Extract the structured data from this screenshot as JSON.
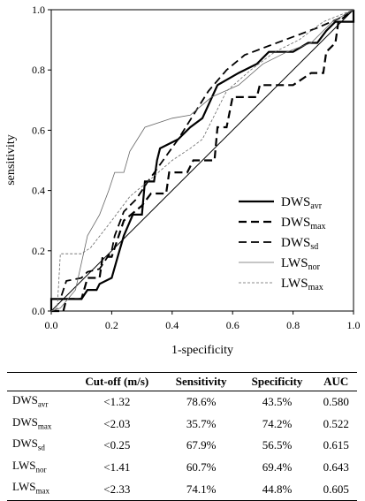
{
  "chart_data": {
    "type": "line",
    "title": "",
    "xlabel": "1-specificity",
    "ylabel": "sensitivity",
    "xlim": [
      0.0,
      1.0
    ],
    "ylim": [
      0.0,
      1.0
    ],
    "xticks": [
      "0.0",
      "0.2",
      "0.4",
      "0.6",
      "0.8",
      "1.0"
    ],
    "yticks": [
      "0.0",
      "0.2",
      "0.4",
      "0.6",
      "0.8",
      "1.0"
    ],
    "grid": false,
    "legend_position": "bottom-right",
    "reference_line": [
      [
        0,
        0
      ],
      [
        1,
        1
      ]
    ],
    "series": [
      {
        "name": "DWS",
        "sub": "avr",
        "style": "solid",
        "width": 2.2,
        "color": "#000000",
        "points": [
          [
            0,
            0
          ],
          [
            0,
            0.04
          ],
          [
            0.1,
            0.04
          ],
          [
            0.12,
            0.07
          ],
          [
            0.15,
            0.07
          ],
          [
            0.16,
            0.09
          ],
          [
            0.2,
            0.11
          ],
          [
            0.22,
            0.18
          ],
          [
            0.24,
            0.25
          ],
          [
            0.27,
            0.32
          ],
          [
            0.3,
            0.32
          ],
          [
            0.31,
            0.43
          ],
          [
            0.34,
            0.43
          ],
          [
            0.35,
            0.5
          ],
          [
            0.36,
            0.54
          ],
          [
            0.42,
            0.57
          ],
          [
            0.46,
            0.61
          ],
          [
            0.5,
            0.64
          ],
          [
            0.55,
            0.75
          ],
          [
            0.62,
            0.79
          ],
          [
            0.68,
            0.82
          ],
          [
            0.72,
            0.86
          ],
          [
            0.8,
            0.86
          ],
          [
            0.85,
            0.89
          ],
          [
            0.88,
            0.89
          ],
          [
            0.91,
            0.93
          ],
          [
            0.94,
            0.96
          ],
          [
            1,
            0.96
          ],
          [
            1,
            1
          ]
        ]
      },
      {
        "name": "DWS",
        "sub": "max",
        "style": "dashed",
        "width": 2.2,
        "color": "#000000",
        "points": [
          [
            0,
            0
          ],
          [
            0.04,
            0.0
          ],
          [
            0.05,
            0.04
          ],
          [
            0.1,
            0.04
          ],
          [
            0.12,
            0.11
          ],
          [
            0.16,
            0.11
          ],
          [
            0.17,
            0.18
          ],
          [
            0.2,
            0.18
          ],
          [
            0.21,
            0.21
          ],
          [
            0.24,
            0.3
          ],
          [
            0.3,
            0.35
          ],
          [
            0.33,
            0.39
          ],
          [
            0.38,
            0.39
          ],
          [
            0.39,
            0.46
          ],
          [
            0.45,
            0.46
          ],
          [
            0.47,
            0.5
          ],
          [
            0.54,
            0.5
          ],
          [
            0.55,
            0.61
          ],
          [
            0.58,
            0.61
          ],
          [
            0.6,
            0.71
          ],
          [
            0.68,
            0.71
          ],
          [
            0.69,
            0.75
          ],
          [
            0.8,
            0.75
          ],
          [
            0.86,
            0.79
          ],
          [
            0.9,
            0.79
          ],
          [
            0.91,
            0.86
          ],
          [
            0.94,
            0.89
          ],
          [
            0.95,
            0.96
          ],
          [
            1,
            1
          ]
        ]
      },
      {
        "name": "DWS",
        "sub": "sd",
        "style": "dashed",
        "width": 1.8,
        "color": "#000000",
        "points": [
          [
            0,
            0
          ],
          [
            0,
            0.04
          ],
          [
            0.03,
            0.04
          ],
          [
            0.05,
            0.1
          ],
          [
            0.1,
            0.11
          ],
          [
            0.12,
            0.13
          ],
          [
            0.16,
            0.14
          ],
          [
            0.2,
            0.2
          ],
          [
            0.21,
            0.25
          ],
          [
            0.24,
            0.33
          ],
          [
            0.28,
            0.37
          ],
          [
            0.32,
            0.43
          ],
          [
            0.37,
            0.5
          ],
          [
            0.42,
            0.57
          ],
          [
            0.47,
            0.65
          ],
          [
            0.52,
            0.73
          ],
          [
            0.58,
            0.8
          ],
          [
            0.64,
            0.85
          ],
          [
            0.72,
            0.88
          ],
          [
            0.8,
            0.91
          ],
          [
            0.88,
            0.94
          ],
          [
            0.95,
            0.97
          ],
          [
            1,
            1
          ]
        ]
      },
      {
        "name": "LWS",
        "sub": "nor",
        "style": "solid",
        "width": 0.8,
        "color": "#666666",
        "points": [
          [
            0,
            0
          ],
          [
            0.03,
            0.01
          ],
          [
            0.08,
            0.07
          ],
          [
            0.12,
            0.25
          ],
          [
            0.16,
            0.32
          ],
          [
            0.19,
            0.4
          ],
          [
            0.21,
            0.46
          ],
          [
            0.24,
            0.46
          ],
          [
            0.26,
            0.53
          ],
          [
            0.31,
            0.61
          ],
          [
            0.4,
            0.64
          ],
          [
            0.46,
            0.65
          ],
          [
            0.53,
            0.71
          ],
          [
            0.62,
            0.75
          ],
          [
            0.7,
            0.82
          ],
          [
            0.78,
            0.86
          ],
          [
            0.86,
            0.89
          ],
          [
            0.93,
            0.96
          ],
          [
            1,
            1
          ]
        ]
      },
      {
        "name": "LWS",
        "sub": "max",
        "style": "dotted",
        "width": 0.8,
        "color": "#666666",
        "points": [
          [
            0,
            0
          ],
          [
            0.02,
            0.01
          ],
          [
            0.03,
            0.19
          ],
          [
            0.1,
            0.19
          ],
          [
            0.13,
            0.21
          ],
          [
            0.2,
            0.3
          ],
          [
            0.26,
            0.38
          ],
          [
            0.32,
            0.43
          ],
          [
            0.4,
            0.5
          ],
          [
            0.46,
            0.54
          ],
          [
            0.5,
            0.57
          ],
          [
            0.58,
            0.73
          ],
          [
            0.66,
            0.8
          ],
          [
            0.74,
            0.86
          ],
          [
            0.82,
            0.9
          ],
          [
            0.9,
            0.96
          ],
          [
            1,
            1
          ]
        ]
      }
    ]
  },
  "table": {
    "headers": [
      "",
      "Cut-off (m/s)",
      "Sensitivity",
      "Specificity",
      "AUC"
    ],
    "rows": [
      {
        "name": "DWS",
        "sub": "avr",
        "cutoff": "<1.32",
        "sensitivity": "78.6%",
        "specificity": "43.5%",
        "auc": "0.580"
      },
      {
        "name": "DWS",
        "sub": "max",
        "cutoff": "<2.03",
        "sensitivity": "35.7%",
        "specificity": "74.2%",
        "auc": "0.522"
      },
      {
        "name": "DWS",
        "sub": "sd",
        "cutoff": "<0.25",
        "sensitivity": "67.9%",
        "specificity": "56.5%",
        "auc": "0.615"
      },
      {
        "name": "LWS",
        "sub": "nor",
        "cutoff": "<1.41",
        "sensitivity": "60.7%",
        "specificity": "69.4%",
        "auc": "0.643"
      },
      {
        "name": "LWS",
        "sub": "max",
        "cutoff": "<2.33",
        "sensitivity": "74.1%",
        "specificity": "44.8%",
        "auc": "0.605"
      }
    ]
  }
}
